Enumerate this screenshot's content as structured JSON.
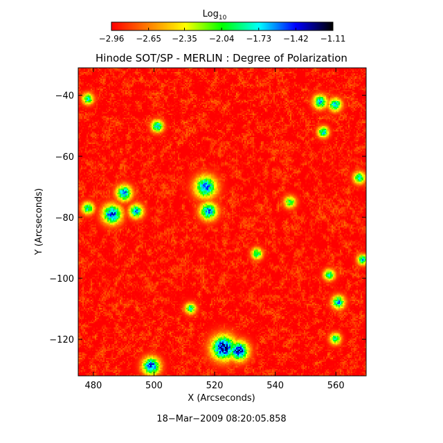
{
  "chart_data": {
    "type": "heatmap",
    "title": "Hinode SOT/SP - MERLIN : Degree of Polarization",
    "xlabel": "X (Arcseconds)",
    "ylabel": "Y (Arcseconds)",
    "xlim": [
      475,
      570
    ],
    "ylim": [
      -132,
      -31
    ],
    "x_ticks": [
      480,
      500,
      520,
      540,
      560
    ],
    "y_ticks": [
      -40,
      -60,
      -80,
      -100,
      -120
    ],
    "x_tick_labels": [
      "480",
      "500",
      "520",
      "540",
      "560"
    ],
    "y_tick_labels": [
      "−40",
      "−60",
      "−80",
      "−100",
      "−120"
    ],
    "colorbar": {
      "label": "Log",
      "label_sub": "10",
      "ticks": [
        -2.96,
        -2.65,
        -2.35,
        -2.04,
        -1.73,
        -1.42,
        -1.11
      ],
      "tick_labels": [
        "−2.96",
        "−2.65",
        "−2.35",
        "−2.04",
        "−1.73",
        "−1.42",
        "−1.11"
      ],
      "range": [
        -2.96,
        -1.11
      ],
      "colormap": [
        "#ff0000",
        "#ff8000",
        "#ffff00",
        "#00ff00",
        "#00ffff",
        "#0000ff",
        "#000000"
      ]
    },
    "timestamp": "18−Mar−2009 08:20:05.858",
    "background_level": -2.9,
    "features": [
      {
        "x": 523,
        "y": -123,
        "sigma": 2.8,
        "peak": -1.15
      },
      {
        "x": 528,
        "y": -124,
        "sigma": 2.2,
        "peak": -1.2
      },
      {
        "x": 517,
        "y": -70,
        "sigma": 2.5,
        "peak": -1.4
      },
      {
        "x": 518,
        "y": -78,
        "sigma": 2.0,
        "peak": -1.45
      },
      {
        "x": 486,
        "y": -79,
        "sigma": 2.2,
        "peak": -1.3
      },
      {
        "x": 490,
        "y": -72,
        "sigma": 1.8,
        "peak": -1.45
      },
      {
        "x": 494,
        "y": -78,
        "sigma": 1.6,
        "peak": -1.5
      },
      {
        "x": 499,
        "y": -129,
        "sigma": 2.0,
        "peak": -1.3
      },
      {
        "x": 555,
        "y": -42,
        "sigma": 1.6,
        "peak": -1.55
      },
      {
        "x": 560,
        "y": -43,
        "sigma": 1.5,
        "peak": -1.6
      },
      {
        "x": 556,
        "y": -52,
        "sigma": 1.3,
        "peak": -1.65
      },
      {
        "x": 568,
        "y": -67,
        "sigma": 1.4,
        "peak": -1.7
      },
      {
        "x": 561,
        "y": -108,
        "sigma": 1.5,
        "peak": -1.55
      },
      {
        "x": 558,
        "y": -99,
        "sigma": 1.3,
        "peak": -1.7
      },
      {
        "x": 501,
        "y": -50,
        "sigma": 1.4,
        "peak": -1.55
      },
      {
        "x": 478,
        "y": -41,
        "sigma": 1.3,
        "peak": -1.7
      },
      {
        "x": 534,
        "y": -92,
        "sigma": 1.3,
        "peak": -1.75
      },
      {
        "x": 569,
        "y": -94,
        "sigma": 1.2,
        "peak": -1.6
      },
      {
        "x": 560,
        "y": -120,
        "sigma": 1.3,
        "peak": -1.75
      },
      {
        "x": 478,
        "y": -77,
        "sigma": 1.4,
        "peak": -1.65
      },
      {
        "x": 512,
        "y": -110,
        "sigma": 1.3,
        "peak": -1.8
      },
      {
        "x": 545,
        "y": -75,
        "sigma": 1.4,
        "peak": -1.9
      }
    ]
  }
}
